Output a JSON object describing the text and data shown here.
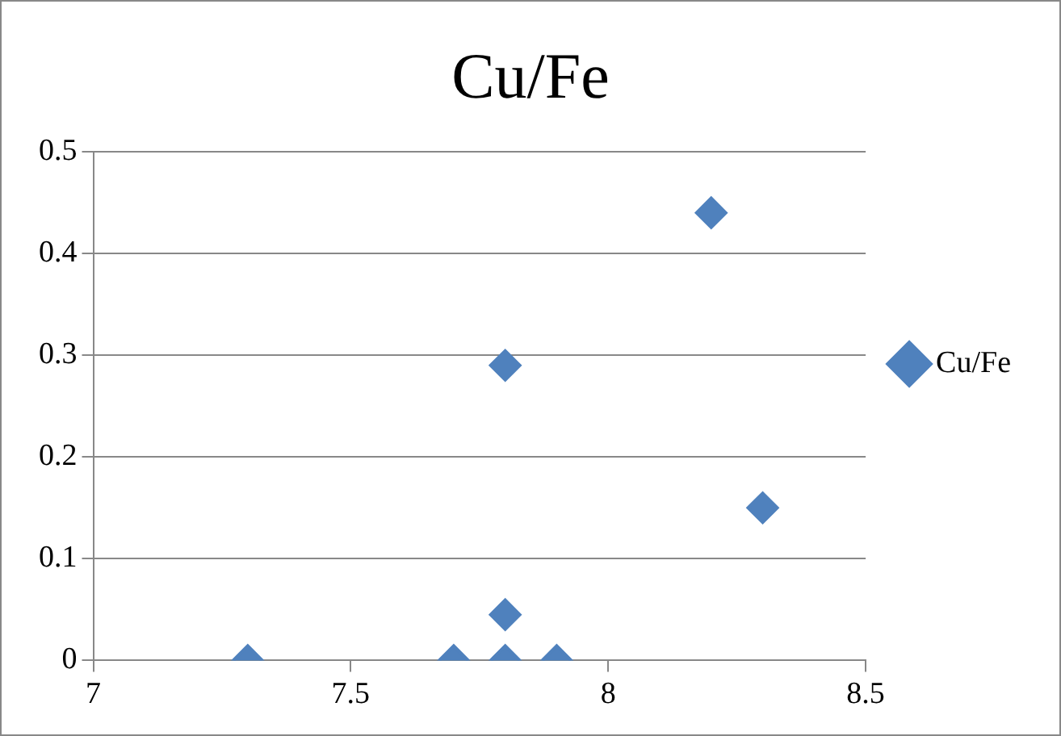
{
  "chart_data": {
    "type": "scatter",
    "title": "Cu/Fe",
    "series": [
      {
        "name": "Cu/Fe",
        "color": "#4f81bd",
        "x": [
          7.3,
          7.7,
          7.8,
          7.9,
          7.8,
          7.8,
          8.2,
          8.3
        ],
        "values": [
          0,
          0,
          0,
          0,
          0.045,
          0.29,
          0.44,
          0.15
        ]
      }
    ],
    "xlim": [
      7,
      8.5
    ],
    "xticks": [
      7,
      7.5,
      8,
      8.5
    ],
    "ylim": [
      0,
      0.5
    ],
    "yticks": [
      0,
      0.1,
      0.2,
      0.3,
      0.4,
      0.5
    ],
    "grid": "y",
    "legend": "right",
    "marker": "diamond"
  }
}
